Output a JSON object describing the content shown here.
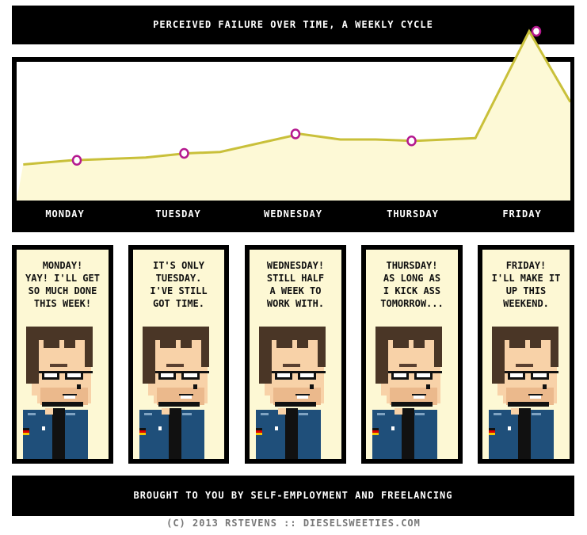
{
  "title": "PERCEIVED FAILURE OVER TIME, A WEEKLY CYCLE",
  "colors": {
    "line": "#c9c03a",
    "fill": "#fdf9d6",
    "marker": "#b5198f",
    "frame": "#000000",
    "panel_bg": "#fdf8d4"
  },
  "chart_data": {
    "type": "area",
    "title": "PERCEIVED FAILURE OVER TIME, A WEEKLY CYCLE",
    "categories": [
      "MONDAY",
      "TUESDAY",
      "WEDNESDAY",
      "THURSDAY",
      "FRIDAY"
    ],
    "markers": [
      29,
      34,
      48,
      43,
      122
    ],
    "line": {
      "x": [
        -0.42,
        0.0,
        0.65,
        1.0,
        1.3,
        2.0,
        2.35,
        2.66,
        3.0,
        3.53,
        4.0,
        4.43
      ],
      "y": [
        26,
        29,
        31,
        34,
        35,
        48,
        44,
        44,
        43,
        45,
        122,
        71
      ]
    },
    "y_axis_shown": false,
    "grid": false,
    "legend": "none"
  },
  "panels": [
    {
      "day": "Monday",
      "text": "MONDAY!\nYAY! I'LL GET\nSO MUCH DONE\nTHIS WEEK!"
    },
    {
      "day": "Tuesday",
      "text": "IT'S ONLY\nTUESDAY.\nI'VE STILL\nGOT TIME."
    },
    {
      "day": "Wednesday",
      "text": "WEDNESDAY!\nSTILL HALF\nA WEEK TO\nWORK WITH."
    },
    {
      "day": "Thursday",
      "text": "THURSDAY!\nAS LONG AS\nI KICK ASS\nTOMORROW..."
    },
    {
      "day": "Friday",
      "text": "FRIDAY!\nI'LL MAKE IT\nUP THIS\nWEEKEND."
    }
  ],
  "caption": "BROUGHT TO YOU BY SELF-EMPLOYMENT AND FREELANCING",
  "footer": "(C) 2013   RSTEVENS :: DIESELSWEETIES.COM"
}
